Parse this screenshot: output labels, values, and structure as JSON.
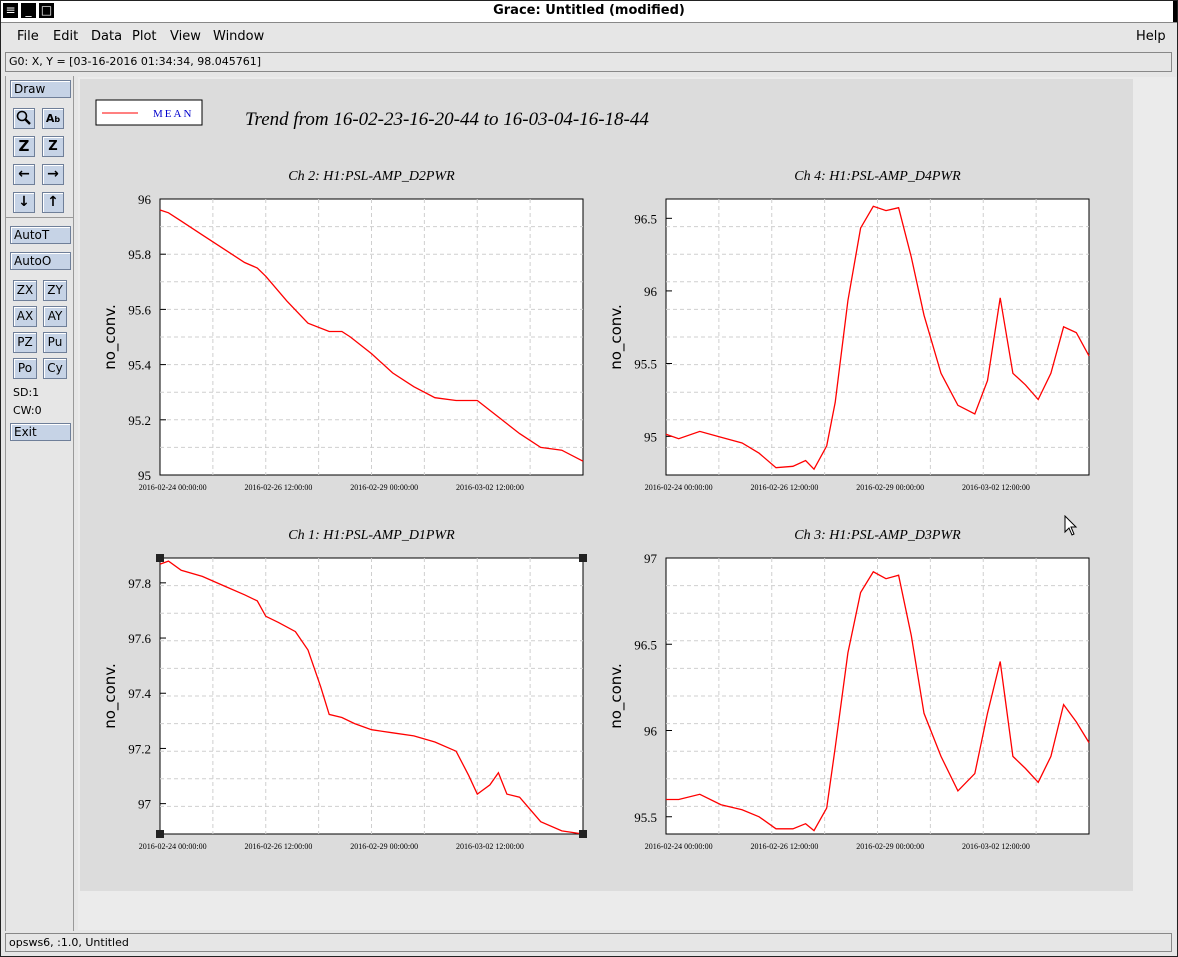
{
  "window": {
    "title": "Grace: Untitled (modified)"
  },
  "menu": [
    {
      "label": "File"
    },
    {
      "label": "Edit"
    },
    {
      "label": "Data"
    },
    {
      "label": "Plot"
    },
    {
      "label": "View"
    },
    {
      "label": "Window"
    },
    {
      "label": "Help"
    }
  ],
  "locator": "G0: X, Y = [03-16-2016 01:34:34, 98.045761]",
  "toolbar": {
    "draw": "Draw",
    "autot": "AutoT",
    "autoo": "AutoO",
    "zx": "ZX",
    "zy": "ZY",
    "ax": "AX",
    "ay": "AY",
    "pz": "PZ",
    "pu": "Pu",
    "po": "Po",
    "cy": "Cy",
    "sd": "SD:1",
    "cw": "CW:0",
    "exit": "Exit",
    "icons": [
      "zoom-icon",
      "text-icon",
      "zoom-x-icon",
      "zoom-y-icon",
      "arrow-left-icon",
      "arrow-right-icon",
      "arrow-down-icon",
      "arrow-up-icon"
    ]
  },
  "status": "opsws6, :1.0, Untitled",
  "figure": {
    "title": "Trend from 16-02-23-16-20-44 to 16-03-04-16-18-44",
    "legend": "MEAN",
    "line_color": "#ff0000"
  },
  "chart_data": [
    {
      "type": "line",
      "title": "Ch 2: H1:PSL-AMP_D2PWR",
      "ylabel": "no_conv.",
      "xlabel": "",
      "ylim": [
        95,
        96
      ],
      "yticks": [
        "96",
        "95.8",
        "95.6",
        "95.4",
        "95.2",
        "95"
      ],
      "xticks": [
        "2016-02-24 00:00:00",
        "2016-02-26 12:00:00",
        "2016-02-29 00:00:00",
        "2016-03-02 12:00:00"
      ],
      "series": [
        {
          "name": "MEAN",
          "x": [
            0,
            0.2,
            0.5,
            1,
            1.5,
            2,
            2.3,
            2.5,
            3,
            3.5,
            4,
            4.3,
            4.5,
            5,
            5.5,
            6,
            6.5,
            7,
            7.5,
            8,
            8.5,
            9,
            9.5,
            10
          ],
          "y": [
            95.96,
            95.95,
            95.92,
            95.87,
            95.82,
            95.77,
            95.75,
            95.72,
            95.63,
            95.55,
            95.52,
            95.52,
            95.5,
            95.44,
            95.37,
            95.32,
            95.28,
            95.27,
            95.27,
            95.21,
            95.15,
            95.1,
            95.09,
            95.05
          ]
        }
      ]
    },
    {
      "type": "line",
      "title": "Ch 4: H1:PSL-AMP_D4PWR",
      "ylabel": "no_conv.",
      "xlabel": "",
      "ylim": [
        94.6,
        96.5
      ],
      "yticks": [
        "96.5",
        "96",
        "95.5",
        "95"
      ],
      "xticks": [
        "2016-02-24 00:00:00",
        "2016-02-26 12:00:00",
        "2016-02-29 00:00:00",
        "2016-03-02 12:00:00"
      ],
      "series": [
        {
          "name": "MEAN",
          "x": [
            0,
            0.3,
            0.8,
            1.3,
            1.8,
            2.2,
            2.6,
            3,
            3.3,
            3.5,
            3.8,
            4,
            4.3,
            4.6,
            4.9,
            5.2,
            5.5,
            5.8,
            6.1,
            6.5,
            6.9,
            7.3,
            7.6,
            7.9,
            8.2,
            8.5,
            8.8,
            9.1,
            9.4,
            9.7,
            10
          ],
          "y": [
            94.88,
            94.85,
            94.9,
            94.86,
            94.82,
            94.75,
            94.65,
            94.66,
            94.7,
            94.64,
            94.8,
            95.1,
            95.8,
            96.3,
            96.45,
            96.42,
            96.44,
            96.1,
            95.7,
            95.3,
            95.08,
            95.02,
            95.25,
            95.82,
            95.3,
            95.22,
            95.12,
            95.3,
            95.62,
            95.58,
            95.42
          ]
        }
      ]
    },
    {
      "type": "line",
      "title": "Ch 1: H1:PSL-AMP_D1PWR",
      "ylabel": "no_conv.",
      "xlabel": "",
      "ylim": [
        96.96,
        97.86
      ],
      "yticks": [
        "97.8",
        "97.6",
        "97.4",
        "97.2",
        "97"
      ],
      "xticks": [
        "2016-02-24 00:00:00",
        "2016-02-26 12:00:00",
        "2016-02-29 00:00:00",
        "2016-03-02 12:00:00"
      ],
      "series": [
        {
          "name": "MEAN",
          "x": [
            0,
            0.2,
            0.5,
            1,
            1.5,
            2,
            2.3,
            2.5,
            2.8,
            3.2,
            3.5,
            3.8,
            4,
            4.3,
            4.6,
            5,
            5.5,
            6,
            6.5,
            7,
            7.3,
            7.5,
            7.8,
            8,
            8.2,
            8.5,
            9,
            9.5,
            10
          ],
          "y": [
            97.84,
            97.85,
            97.82,
            97.8,
            97.77,
            97.74,
            97.72,
            97.67,
            97.65,
            97.62,
            97.56,
            97.44,
            97.35,
            97.34,
            97.32,
            97.3,
            97.29,
            97.28,
            97.26,
            97.23,
            97.15,
            97.09,
            97.12,
            97.16,
            97.09,
            97.08,
            97.0,
            96.97,
            96.96
          ]
        }
      ]
    },
    {
      "type": "line",
      "title": "Ch 3: H1:PSL-AMP_D3PWR",
      "ylabel": "no_conv.",
      "xlabel": "",
      "ylim": [
        95.4,
        97
      ],
      "yticks": [
        "97",
        "96.5",
        "96",
        "95.5"
      ],
      "xticks": [
        "2016-02-24 00:00:00",
        "2016-02-26 12:00:00",
        "2016-02-29 00:00:00",
        "2016-03-02 12:00:00"
      ],
      "series": [
        {
          "name": "MEAN",
          "x": [
            0,
            0.3,
            0.8,
            1.3,
            1.8,
            2.2,
            2.6,
            3,
            3.3,
            3.5,
            3.8,
            4,
            4.3,
            4.6,
            4.9,
            5.2,
            5.5,
            5.8,
            6.1,
            6.5,
            6.9,
            7.3,
            7.6,
            7.9,
            8.2,
            8.5,
            8.8,
            9.1,
            9.4,
            9.7,
            10
          ],
          "y": [
            95.6,
            95.6,
            95.63,
            95.57,
            95.54,
            95.5,
            95.43,
            95.43,
            95.46,
            95.42,
            95.55,
            95.9,
            96.45,
            96.8,
            96.92,
            96.88,
            96.9,
            96.55,
            96.1,
            95.85,
            95.65,
            95.75,
            96.1,
            96.4,
            95.85,
            95.78,
            95.7,
            95.85,
            96.15,
            96.05,
            95.93
          ]
        }
      ]
    }
  ]
}
